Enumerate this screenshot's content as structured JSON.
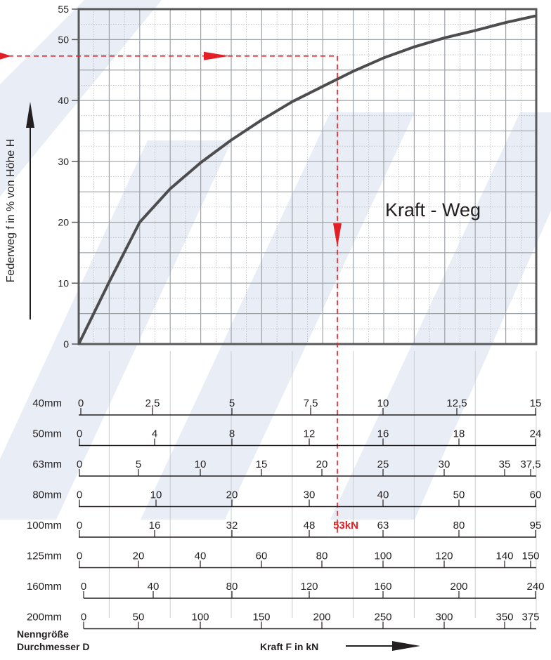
{
  "chart_data": {
    "type": "line",
    "title": "Kraft - Weg",
    "ylabel": "Federweg  f  in  %  von  Höhe  H",
    "xlabel": "Kraft F  in kN",
    "ylim": [
      0,
      55
    ],
    "yticks": [
      "0",
      "10",
      "20",
      "30",
      "40",
      "50",
      "55"
    ],
    "grid": true,
    "series": [
      {
        "x": [
          0,
          2.5,
          5,
          7.5,
          10,
          12.5,
          15,
          17.5,
          20,
          22.5,
          25,
          27.5,
          30,
          32.5,
          35,
          37.5
        ],
        "values": [
          0,
          10.2,
          20,
          25.5,
          29.8,
          33.5,
          36.8,
          39.8,
          42.3,
          44.8,
          47,
          48.8,
          50.3,
          51.5,
          52.8,
          53.9
        ]
      }
    ],
    "reading": {
      "y_percent": 47.3,
      "label": "53kN",
      "scale": "100mm"
    },
    "scales_title": "Nenngröße\nDurchmesser D",
    "scales": [
      {
        "name": "40mm",
        "ticks": [
          "0",
          "2,5",
          "5",
          "7,5",
          "10",
          "12,5",
          "15"
        ]
      },
      {
        "name": "50mm",
        "ticks": [
          "0",
          "4",
          "8",
          "12",
          "16",
          "18",
          "24"
        ]
      },
      {
        "name": "63mm",
        "ticks": [
          "0",
          "5",
          "10",
          "15",
          "20",
          "25",
          "30",
          "35",
          "37,5"
        ]
      },
      {
        "name": "80mm",
        "ticks": [
          "0",
          "10",
          "20",
          "30",
          "40",
          "50",
          "60"
        ]
      },
      {
        "name": "100mm",
        "ticks": [
          "0",
          "16",
          "32",
          "48",
          "63",
          "80",
          "95"
        ]
      },
      {
        "name": "125mm",
        "ticks": [
          "0",
          "20",
          "40",
          "60",
          "80",
          "100",
          "120",
          "140",
          "150"
        ]
      },
      {
        "name": "160mm",
        "ticks": [
          "0",
          "40",
          "80",
          "120",
          "160",
          "200",
          "240"
        ]
      },
      {
        "name": "200mm",
        "ticks": [
          "0",
          "50",
          "100",
          "150",
          "200",
          "250",
          "300",
          "350",
          "375"
        ]
      }
    ],
    "colors": {
      "curve": "#4d4d4f",
      "frame": "#58595b",
      "grid": "#9ea3a8",
      "reading": "#e31e24",
      "watermark": "#e8edf6"
    }
  },
  "scale_label_layout": [
    [
      115,
      217,
      330,
      442,
      545,
      650,
      762
    ],
    [
      113,
      220,
      330,
      440,
      545,
      653,
      762
    ],
    [
      113,
      197,
      285,
      372,
      458,
      545,
      632,
      718,
      755
    ],
    [
      113,
      222,
      330,
      440,
      545,
      653,
      762
    ],
    [
      113,
      220,
      330,
      440,
      545,
      653,
      762
    ],
    [
      113,
      197,
      285,
      372,
      458,
      545,
      632,
      718,
      755
    ],
    [
      119,
      218,
      330,
      440,
      545,
      653,
      762
    ],
    [
      119,
      197,
      285,
      372,
      458,
      545,
      632,
      718,
      755
    ]
  ]
}
